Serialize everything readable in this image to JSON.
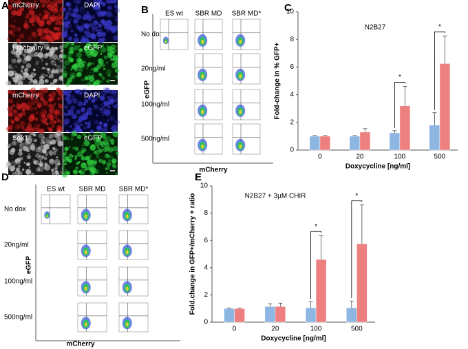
{
  "panel_a": {
    "label": "A",
    "top": [
      "mCherry",
      "DAPI",
      "Brachyury",
      "eGFP"
    ],
    "bottom": [
      "mCherry",
      "DAPI",
      "Sox1",
      "eGFP"
    ]
  },
  "panel_b": {
    "label": "B",
    "columns": [
      "ES wt",
      "SBR MD",
      "SBR MD*"
    ],
    "rows": [
      "No dox",
      "20ng/ml",
      "100ng/ml",
      "500ng/ml"
    ],
    "y_label": "eGFP",
    "x_label": "mCherry"
  },
  "panel_d": {
    "label": "D",
    "columns": [
      "ES wt",
      "SBR MD",
      "SBR MD*"
    ],
    "rows": [
      "No dox",
      "20ng/ml",
      "100ng/ml",
      "500ng/ml"
    ],
    "y_label": "eGFP",
    "x_label": "mCherry"
  },
  "chart_data": [
    {
      "type": "bar",
      "panel_label": "C",
      "title": "N2B27",
      "y_label": "Fold-change in % GFP+",
      "x_label": "Doxycycline [ng/ml]",
      "categories": [
        "0",
        "20",
        "100",
        "500"
      ],
      "series": [
        {
          "color": "#8db6e2",
          "values": [
            1,
            1,
            1.25,
            1.8
          ],
          "errors": [
            0.05,
            0.05,
            0.15,
            0.9
          ]
        },
        {
          "color": "#ee7f7f",
          "values": [
            1,
            1.3,
            3.2,
            6.25
          ],
          "errors": [
            0.05,
            0.25,
            1.4,
            2
          ]
        }
      ],
      "significance": [
        null,
        null,
        "*",
        "*"
      ],
      "ylim": [
        0,
        10
      ],
      "yticks": [
        0,
        2,
        4,
        6,
        8,
        10
      ]
    },
    {
      "type": "bar",
      "panel_label": "E",
      "title": "N2B27 + 3μM CHIR",
      "y_label": "Fold.change in GFP+/mCherry + ratio",
      "x_label": "Doxycycline [ng/ml]",
      "categories": [
        "0",
        "20",
        "100",
        "500"
      ],
      "series": [
        {
          "color": "#8db6e2",
          "values": [
            1,
            1.15,
            1.05,
            1.05
          ],
          "errors": [
            0.03,
            0.2,
            0.45,
            0.5
          ]
        },
        {
          "color": "#ee7f7f",
          "values": [
            1,
            1.15,
            4.6,
            5.75
          ],
          "errors": [
            0.03,
            0.25,
            1.75,
            2.85
          ]
        }
      ],
      "significance": [
        null,
        null,
        "*",
        "*"
      ],
      "ylim": [
        0,
        10
      ],
      "yticks": [
        0,
        2,
        4,
        6,
        8,
        10
      ]
    }
  ]
}
